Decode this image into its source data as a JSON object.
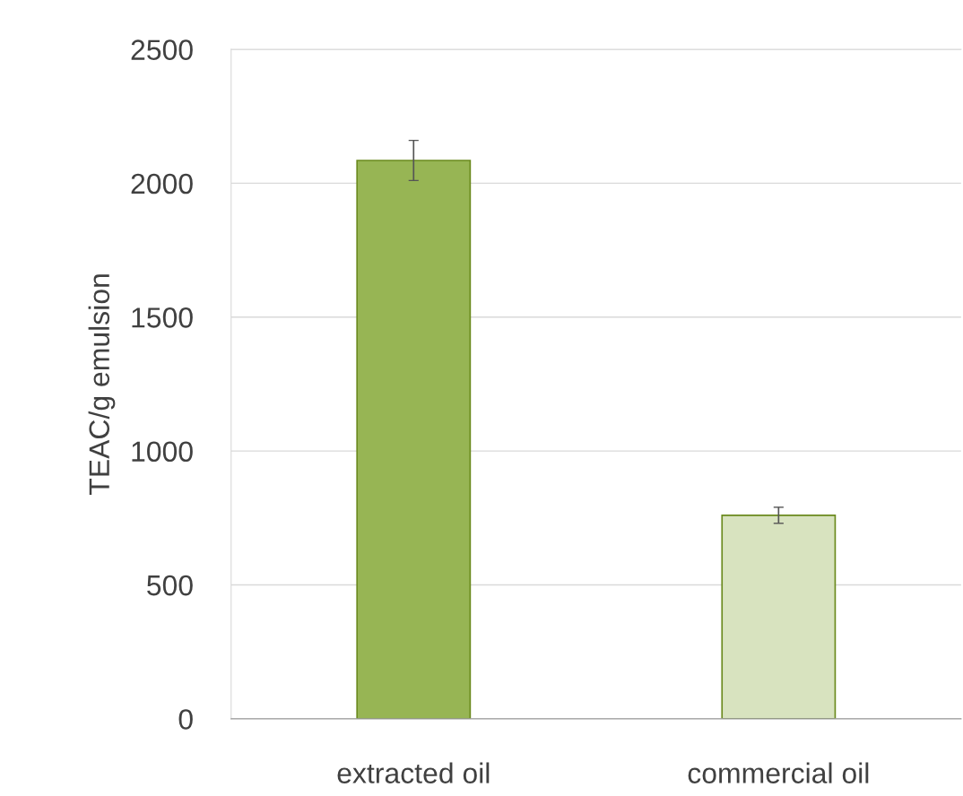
{
  "chart_data": {
    "type": "bar",
    "ylabel": "TEAC/g emulsion",
    "categories": [
      "extracted oil",
      "commercial oil"
    ],
    "values": [
      2085,
      760
    ],
    "errors": [
      75,
      30
    ],
    "colors": [
      "#9dc544",
      "#dbe9b9"
    ],
    "ylim": [
      0,
      2500
    ],
    "yticks": [
      0,
      500,
      1000,
      1500,
      2000,
      2500
    ],
    "grid": "y",
    "legend": false
  }
}
